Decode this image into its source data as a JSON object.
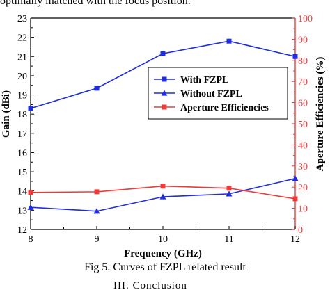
{
  "page": {
    "top_text": "optimally matched with the focus position.",
    "caption": "Fig 5. Curves of FZPL related result",
    "bottom_text": "III.  Conclusion"
  },
  "chart_data": {
    "type": "line",
    "x": [
      8,
      9,
      10,
      11,
      12
    ],
    "xlabel": "Frequency (GHz)",
    "ylabel": "Gain (dBi)",
    "ylabel_right": "Aperture Efficiencies (%)",
    "xlim": [
      8,
      12
    ],
    "ylim": [
      12,
      23
    ],
    "ylim_right": [
      0,
      100
    ],
    "x_ticks": [
      8,
      9,
      10,
      11,
      12
    ],
    "y_ticks": [
      12,
      13,
      14,
      15,
      16,
      17,
      18,
      19,
      20,
      21,
      22,
      23
    ],
    "y_ticks_right": [
      0,
      10,
      20,
      30,
      40,
      50,
      60,
      70,
      80,
      90,
      100
    ],
    "grid": false,
    "legend_position": "center-right",
    "colors": {
      "blue": "#1f2de0",
      "red": "#f03a3a"
    },
    "series": [
      {
        "name": "With FZPL",
        "axis": "left",
        "marker": "square",
        "color": "#1f2de0",
        "values": [
          18.3,
          19.35,
          21.15,
          21.8,
          21.0
        ]
      },
      {
        "name": "Without FZPL",
        "axis": "left",
        "marker": "triangle",
        "color": "#1f2de0",
        "values": [
          13.15,
          12.95,
          13.7,
          13.85,
          14.65
        ]
      },
      {
        "name": "Aperture Efficiencies",
        "axis": "right",
        "marker": "square",
        "color": "#f03a3a",
        "values": [
          17.5,
          17.8,
          20.5,
          19.5,
          14.5
        ]
      }
    ]
  }
}
